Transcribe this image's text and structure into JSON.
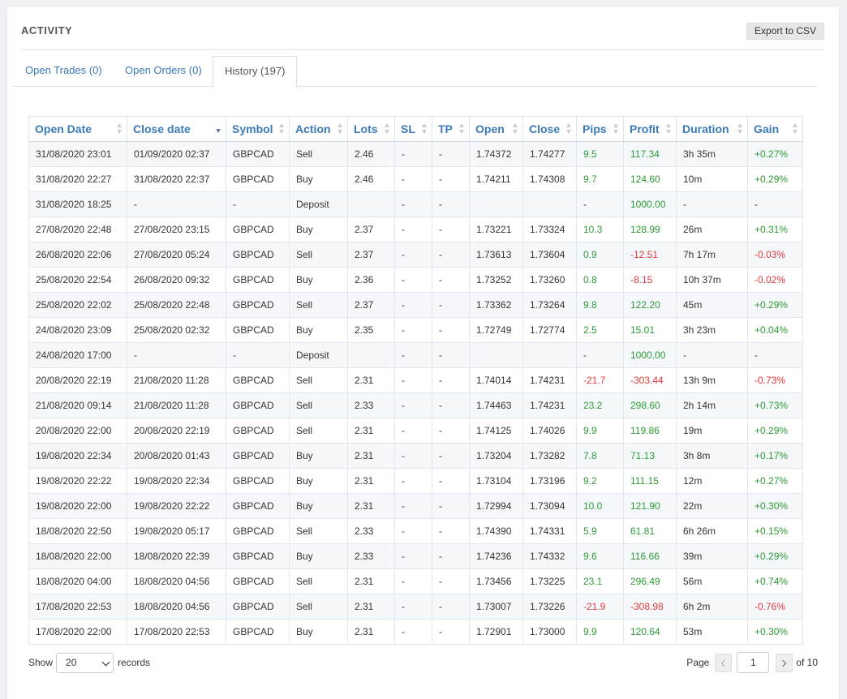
{
  "header": {
    "title": "ACTIVITY",
    "export_label": "Export to CSV"
  },
  "tabs": [
    {
      "label": "Open Trades (0)",
      "active": false
    },
    {
      "label": "Open Orders (0)",
      "active": false
    },
    {
      "label": "History (197)",
      "active": true
    }
  ],
  "table": {
    "columns": [
      "Open Date",
      "Close date",
      "Symbol",
      "Action",
      "Lots",
      "SL",
      "TP",
      "Open",
      "Close",
      "Pips",
      "Profit",
      "Duration",
      "Gain"
    ],
    "sorted_column": "Close date",
    "sort_direction": "desc",
    "rows": [
      [
        "31/08/2020 23:01",
        "01/09/2020 02:37",
        "GBPCAD",
        "Sell",
        "2.46",
        "-",
        "-",
        "1.74372",
        "1.74277",
        "9.5",
        "117.34",
        "3h 35m",
        "+0.27%"
      ],
      [
        "31/08/2020 22:27",
        "31/08/2020 22:37",
        "GBPCAD",
        "Buy",
        "2.46",
        "-",
        "-",
        "1.74211",
        "1.74308",
        "9.7",
        "124.60",
        "10m",
        "+0.29%"
      ],
      [
        "31/08/2020 18:25",
        "-",
        "-",
        "Deposit",
        "",
        "-",
        "-",
        "",
        "",
        "-",
        "1000.00",
        "-",
        "-"
      ],
      [
        "27/08/2020 22:48",
        "27/08/2020 23:15",
        "GBPCAD",
        "Buy",
        "2.37",
        "-",
        "-",
        "1.73221",
        "1.73324",
        "10.3",
        "128.99",
        "26m",
        "+0.31%"
      ],
      [
        "26/08/2020 22:06",
        "27/08/2020 05:24",
        "GBPCAD",
        "Sell",
        "2.37",
        "-",
        "-",
        "1.73613",
        "1.73604",
        "0.9",
        "-12.51",
        "7h 17m",
        "-0.03%"
      ],
      [
        "25/08/2020 22:54",
        "26/08/2020 09:32",
        "GBPCAD",
        "Buy",
        "2.36",
        "-",
        "-",
        "1.73252",
        "1.73260",
        "0.8",
        "-8.15",
        "10h 37m",
        "-0.02%"
      ],
      [
        "25/08/2020 22:02",
        "25/08/2020 22:48",
        "GBPCAD",
        "Sell",
        "2.37",
        "-",
        "-",
        "1.73362",
        "1.73264",
        "9.8",
        "122.20",
        "45m",
        "+0.29%"
      ],
      [
        "24/08/2020 23:09",
        "25/08/2020 02:32",
        "GBPCAD",
        "Buy",
        "2.35",
        "-",
        "-",
        "1.72749",
        "1.72774",
        "2.5",
        "15.01",
        "3h 23m",
        "+0.04%"
      ],
      [
        "24/08/2020 17:00",
        "-",
        "-",
        "Deposit",
        "",
        "-",
        "-",
        "",
        "",
        "-",
        "1000.00",
        "-",
        "-"
      ],
      [
        "20/08/2020 22:19",
        "21/08/2020 11:28",
        "GBPCAD",
        "Sell",
        "2.31",
        "-",
        "-",
        "1.74014",
        "1.74231",
        "-21.7",
        "-303.44",
        "13h 9m",
        "-0.73%"
      ],
      [
        "21/08/2020 09:14",
        "21/08/2020 11:28",
        "GBPCAD",
        "Sell",
        "2.33",
        "-",
        "-",
        "1.74463",
        "1.74231",
        "23.2",
        "298.60",
        "2h 14m",
        "+0.73%"
      ],
      [
        "20/08/2020 22:00",
        "20/08/2020 22:19",
        "GBPCAD",
        "Sell",
        "2.31",
        "-",
        "-",
        "1.74125",
        "1.74026",
        "9.9",
        "119.86",
        "19m",
        "+0.29%"
      ],
      [
        "19/08/2020 22:34",
        "20/08/2020 01:43",
        "GBPCAD",
        "Buy",
        "2.31",
        "-",
        "-",
        "1.73204",
        "1.73282",
        "7.8",
        "71.13",
        "3h 8m",
        "+0.17%"
      ],
      [
        "19/08/2020 22:22",
        "19/08/2020 22:34",
        "GBPCAD",
        "Buy",
        "2.31",
        "-",
        "-",
        "1.73104",
        "1.73196",
        "9.2",
        "111.15",
        "12m",
        "+0.27%"
      ],
      [
        "19/08/2020 22:00",
        "19/08/2020 22:22",
        "GBPCAD",
        "Buy",
        "2.31",
        "-",
        "-",
        "1.72994",
        "1.73094",
        "10.0",
        "121.90",
        "22m",
        "+0.30%"
      ],
      [
        "18/08/2020 22:50",
        "19/08/2020 05:17",
        "GBPCAD",
        "Sell",
        "2.33",
        "-",
        "-",
        "1.74390",
        "1.74331",
        "5.9",
        "61.81",
        "6h 26m",
        "+0.15%"
      ],
      [
        "18/08/2020 22:00",
        "18/08/2020 22:39",
        "GBPCAD",
        "Buy",
        "2.33",
        "-",
        "-",
        "1.74236",
        "1.74332",
        "9.6",
        "116.66",
        "39m",
        "+0.29%"
      ],
      [
        "18/08/2020 04:00",
        "18/08/2020 04:56",
        "GBPCAD",
        "Sell",
        "2.31",
        "-",
        "-",
        "1.73456",
        "1.73225",
        "23.1",
        "296.49",
        "56m",
        "+0.74%"
      ],
      [
        "17/08/2020 22:53",
        "18/08/2020 04:56",
        "GBPCAD",
        "Sell",
        "2.31",
        "-",
        "-",
        "1.73007",
        "1.73226",
        "-21.9",
        "-308.98",
        "6h 2m",
        "-0.76%"
      ],
      [
        "17/08/2020 22:00",
        "17/08/2020 22:53",
        "GBPCAD",
        "Buy",
        "2.31",
        "-",
        "-",
        "1.72901",
        "1.73000",
        "9.9",
        "120.64",
        "53m",
        "+0.30%"
      ]
    ]
  },
  "footer": {
    "show_label": "Show",
    "page_size": "20",
    "records_label": "records",
    "page_label": "Page",
    "current_page": "1",
    "of_label": "of 10"
  },
  "colors": {
    "link": "#3a7ab8",
    "positive": "#2e9a34",
    "negative": "#e03a3a"
  }
}
